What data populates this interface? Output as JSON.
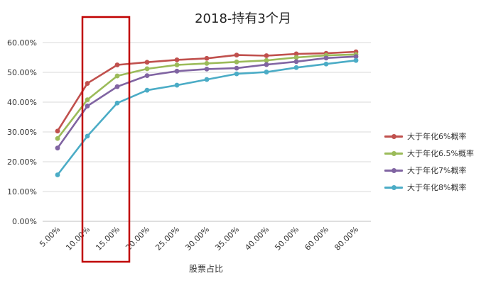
{
  "chart_data": {
    "type": "line",
    "title": "2018-持有3个月",
    "xlabel": "股票占比",
    "ylabel": "",
    "categories": [
      "5.00%",
      "10.00%",
      "15.00%",
      "20.00%",
      "25.00%",
      "30.00%",
      "35.00%",
      "40.00%",
      "50.00%",
      "60.00%",
      "80.00%"
    ],
    "y_ticks": [
      "0.00%",
      "10.00%",
      "20.00%",
      "30.00%",
      "40.00%",
      "50.00%",
      "60.00%"
    ],
    "ylim": [
      0,
      60
    ],
    "grid": true,
    "legend_position": "right",
    "series": [
      {
        "name": "大于年化6%概率",
        "color": "#C0504D",
        "values": [
          30.3,
          46.3,
          52.5,
          53.4,
          54.2,
          54.7,
          55.8,
          55.6,
          56.2,
          56.4,
          56.9
        ]
      },
      {
        "name": "大于年化6.5%概率",
        "color": "#9BBB59",
        "values": [
          27.8,
          40.8,
          48.8,
          51.2,
          52.5,
          53.0,
          53.5,
          54.0,
          55.0,
          55.7,
          56.0
        ]
      },
      {
        "name": "大于年化7%概率",
        "color": "#8064A2",
        "values": [
          24.6,
          38.7,
          45.2,
          48.9,
          50.4,
          51.1,
          51.4,
          52.6,
          53.6,
          54.8,
          55.3
        ]
      },
      {
        "name": "大于年化8%概率",
        "color": "#4BACC6",
        "values": [
          15.6,
          28.6,
          39.7,
          44.0,
          45.7,
          47.6,
          49.5,
          50.1,
          51.6,
          52.8,
          54.0
        ]
      }
    ],
    "annotations": [
      {
        "type": "highlight-box",
        "color": "#C00000",
        "categories": [
          "10.00%",
          "15.00%"
        ]
      }
    ]
  }
}
